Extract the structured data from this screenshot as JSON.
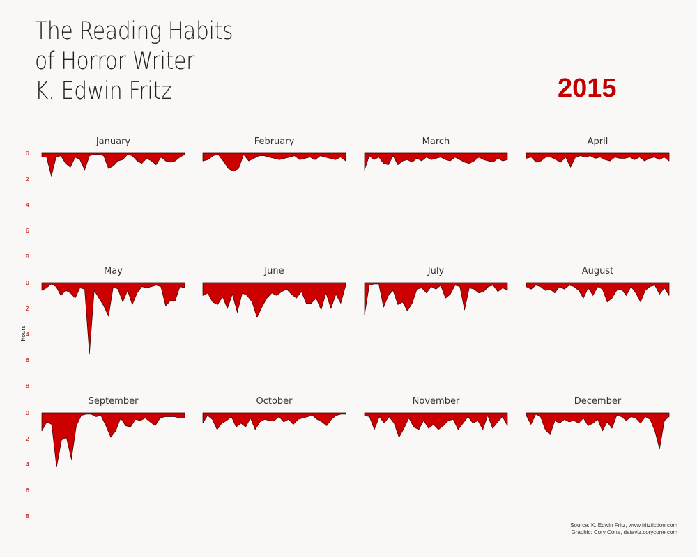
{
  "title_lines": [
    "The Reading Habits",
    "of Horror Writer",
    "K. Edwin Fritz"
  ],
  "year": "2015",
  "source_lines": [
    "Source: K. Edwin Fritz, www.fritzfiction.com",
    "Graphic: Cory Cone, dataviz.corycone.com"
  ],
  "colors": {
    "accent": "#c00000",
    "fill": "#cc0000",
    "text": "#222222",
    "background": "#f9f8f7"
  },
  "chart_data": {
    "type": "area",
    "layout": "small-multiples",
    "ylabel": "Hours",
    "ylim": [
      0,
      8
    ],
    "yaxis_inverted": true,
    "yticks": [
      "0",
      "2",
      "4",
      "6",
      "8"
    ],
    "grid": false,
    "series": [
      {
        "name": "January",
        "values": [
          0.3,
          0.3,
          1.8,
          0.3,
          0.2,
          0.8,
          1.1,
          0.3,
          0.5,
          1.3,
          0.2,
          0.1,
          0.1,
          0.2,
          1.2,
          1.0,
          0.6,
          0.5,
          0.1,
          0.2,
          0.6,
          0.8,
          0.4,
          0.6,
          0.9,
          0.3,
          0.6,
          0.7,
          0.6,
          0.3,
          0.1
        ]
      },
      {
        "name": "February",
        "values": [
          0.6,
          0.5,
          0.2,
          0.1,
          0.6,
          1.2,
          1.4,
          1.2,
          0.1,
          0.6,
          0.4,
          0.2,
          0.2,
          0.3,
          0.4,
          0.5,
          0.4,
          0.3,
          0.2,
          0.5,
          0.4,
          0.3,
          0.5,
          0.2,
          0.3,
          0.4,
          0.5,
          0.3,
          0.6
        ]
      },
      {
        "name": "March",
        "values": [
          1.3,
          0.2,
          0.5,
          0.3,
          0.8,
          0.9,
          0.2,
          0.9,
          0.6,
          0.5,
          0.7,
          0.4,
          0.6,
          0.3,
          0.5,
          0.4,
          0.3,
          0.5,
          0.6,
          0.3,
          0.5,
          0.7,
          0.8,
          0.6,
          0.3,
          0.5,
          0.6,
          0.7,
          0.4,
          0.6,
          0.5
        ]
      },
      {
        "name": "April",
        "values": [
          0.4,
          0.3,
          0.7,
          0.6,
          0.3,
          0.3,
          0.5,
          0.7,
          0.3,
          1.1,
          0.3,
          0.2,
          0.3,
          0.2,
          0.4,
          0.3,
          0.5,
          0.6,
          0.3,
          0.4,
          0.4,
          0.3,
          0.5,
          0.3,
          0.6,
          0.4,
          0.3,
          0.5,
          0.3,
          0.6
        ]
      },
      {
        "name": "May",
        "values": [
          0.6,
          0.4,
          0.1,
          0.3,
          1.0,
          0.6,
          0.8,
          1.2,
          0.4,
          0.5,
          5.5,
          0.6,
          1.2,
          1.8,
          2.6,
          0.3,
          0.5,
          1.5,
          0.6,
          1.7,
          0.8,
          0.3,
          0.4,
          0.3,
          0.2,
          0.3,
          1.8,
          1.4,
          1.4,
          0.3,
          0.4
        ]
      },
      {
        "name": "June",
        "values": [
          1.0,
          0.8,
          1.5,
          1.7,
          1.1,
          2.0,
          0.9,
          2.3,
          0.8,
          1.0,
          1.5,
          2.7,
          1.9,
          1.2,
          0.8,
          1.0,
          0.7,
          0.5,
          0.9,
          1.2,
          0.7,
          1.6,
          1.6,
          1.2,
          2.1,
          0.8,
          2.0,
          0.9,
          1.6,
          0.2
        ]
      },
      {
        "name": "July",
        "values": [
          2.5,
          0.2,
          0.1,
          0.1,
          1.9,
          1.0,
          0.6,
          1.7,
          1.5,
          2.2,
          1.6,
          0.5,
          0.4,
          0.8,
          0.3,
          0.5,
          0.2,
          1.2,
          0.9,
          0.2,
          0.3,
          2.1,
          0.4,
          0.5,
          0.8,
          0.7,
          0.3,
          0.2,
          0.7,
          0.4,
          0.6
        ]
      },
      {
        "name": "August",
        "values": [
          0.3,
          0.5,
          0.2,
          0.3,
          0.6,
          0.5,
          0.8,
          0.3,
          0.5,
          0.2,
          0.3,
          0.6,
          1.2,
          0.4,
          1.0,
          0.3,
          0.5,
          1.5,
          1.2,
          0.6,
          0.5,
          1.0,
          0.3,
          0.8,
          1.5,
          0.6,
          0.3,
          0.2,
          0.9,
          0.4,
          1.0
        ]
      },
      {
        "name": "September",
        "values": [
          1.4,
          0.7,
          0.9,
          4.2,
          2.1,
          1.9,
          3.6,
          1.0,
          0.2,
          0.1,
          0.1,
          0.3,
          0.2,
          1.0,
          1.9,
          1.4,
          0.4,
          1.0,
          1.1,
          0.5,
          0.6,
          0.4,
          0.7,
          1.0,
          0.4,
          0.3,
          0.3,
          0.3,
          0.4,
          0.4
        ]
      },
      {
        "name": "October",
        "values": [
          0.8,
          0.2,
          0.5,
          1.3,
          0.8,
          0.6,
          0.3,
          1.1,
          0.8,
          1.1,
          0.4,
          1.3,
          0.7,
          0.5,
          0.6,
          0.6,
          0.3,
          0.7,
          0.5,
          0.9,
          0.5,
          0.4,
          0.3,
          0.2,
          0.5,
          0.7,
          1.0,
          0.5,
          0.2,
          0.1,
          0.1
        ]
      },
      {
        "name": "November",
        "values": [
          0.2,
          0.3,
          1.3,
          0.3,
          0.8,
          0.3,
          0.8,
          1.9,
          1.2,
          0.4,
          1.1,
          1.3,
          0.6,
          1.2,
          0.9,
          1.3,
          1.0,
          0.6,
          0.5,
          1.3,
          0.8,
          0.3,
          0.8,
          0.6,
          1.3,
          0.2,
          1.2,
          0.7,
          0.3,
          1.0
        ]
      },
      {
        "name": "December",
        "values": [
          0.2,
          0.9,
          0.1,
          0.3,
          1.3,
          1.7,
          0.6,
          0.8,
          0.5,
          0.7,
          0.6,
          0.8,
          0.4,
          1.0,
          0.8,
          0.5,
          1.4,
          0.7,
          1.2,
          0.2,
          0.3,
          0.6,
          0.3,
          0.4,
          0.8,
          0.3,
          0.5,
          1.4,
          2.8,
          0.6,
          0.3
        ]
      }
    ]
  }
}
